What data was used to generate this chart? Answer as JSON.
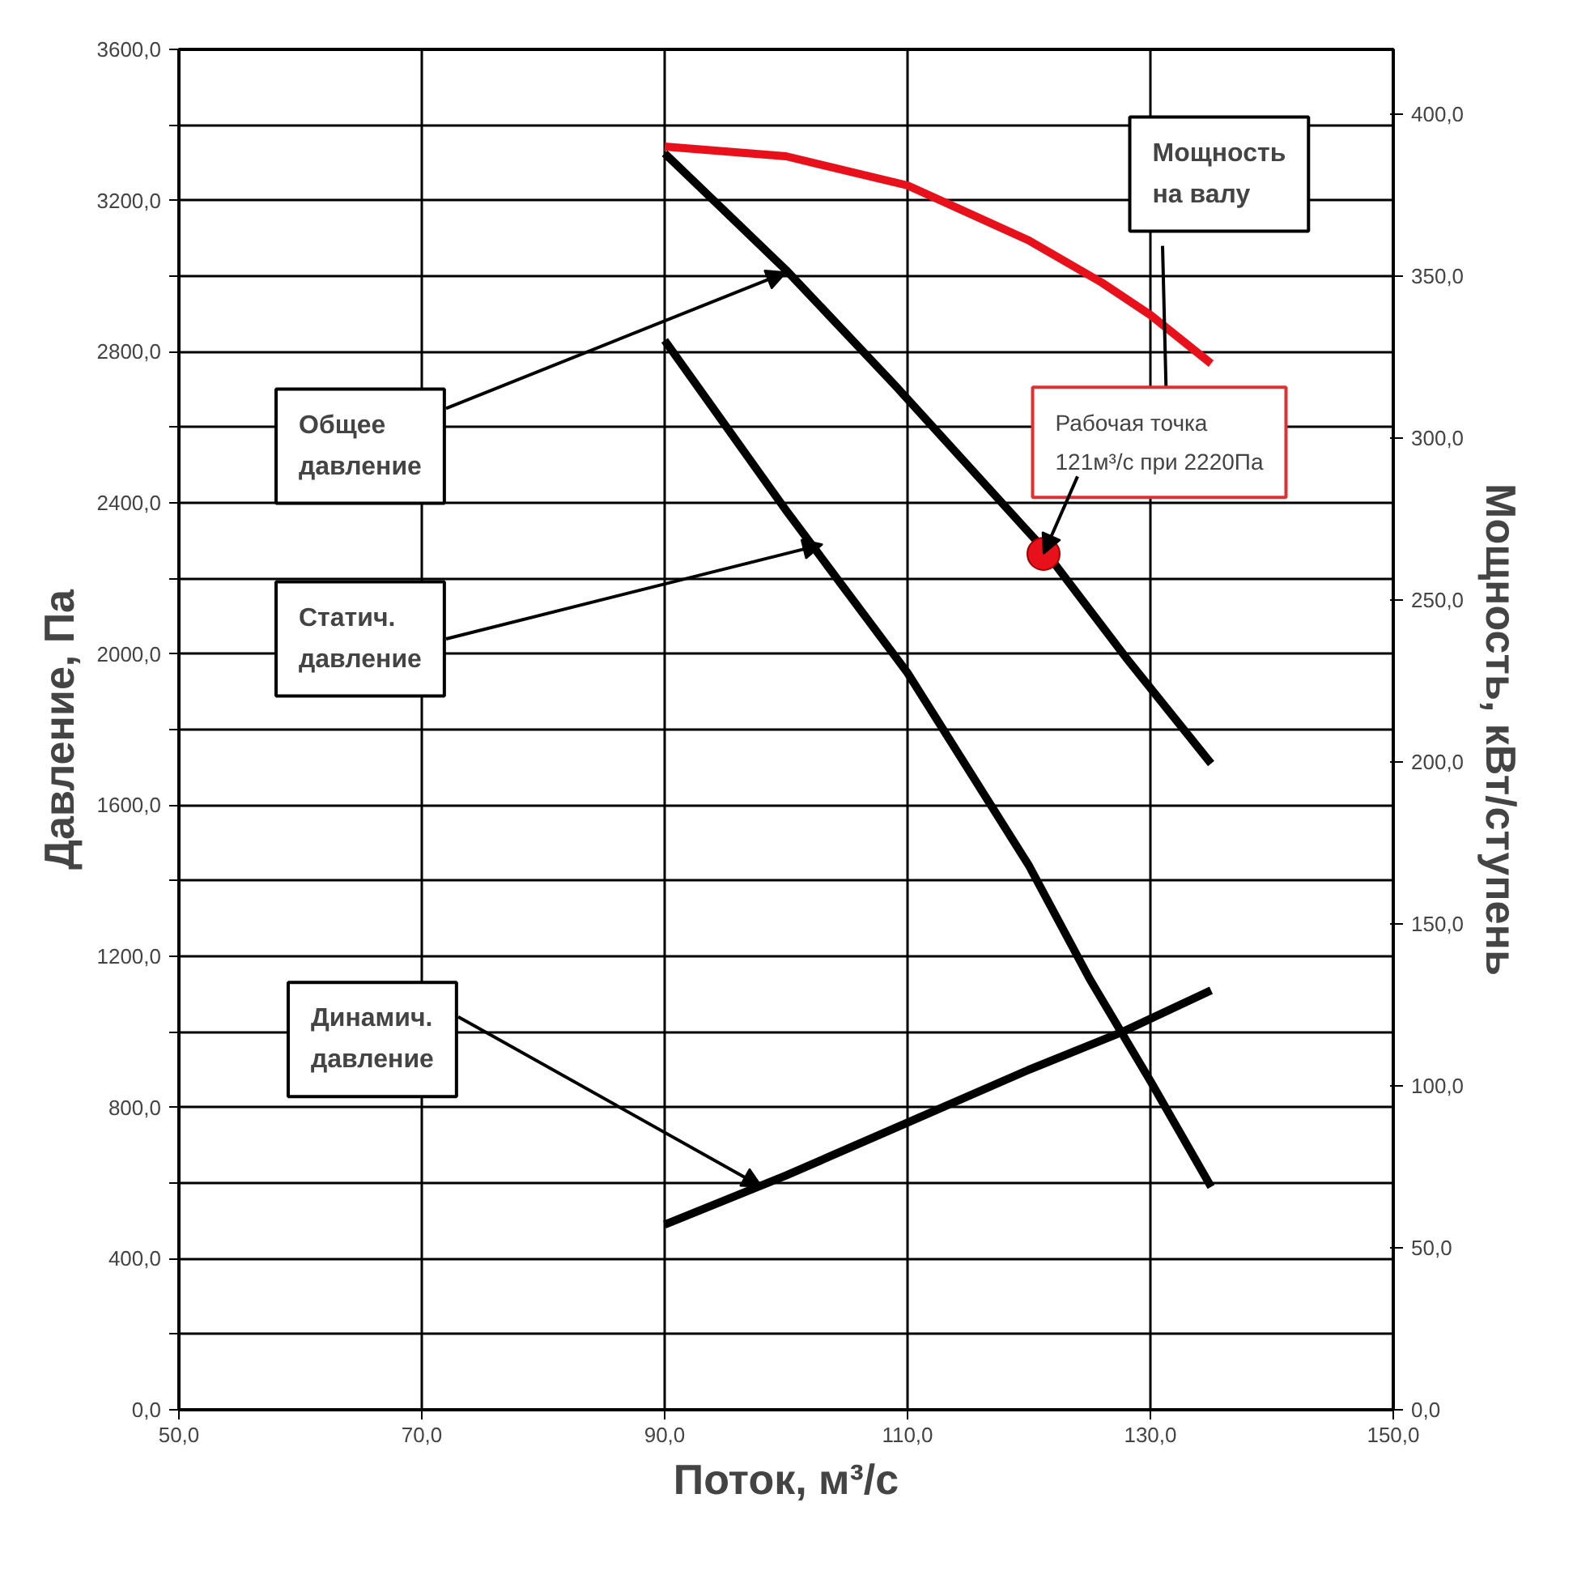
{
  "chart_data": {
    "type": "line",
    "xlabel": "Поток, м³/с",
    "ylabel": "Давление, Па",
    "y2label": "Мощность, кВт/ступень",
    "xlim": [
      50,
      150
    ],
    "xticks": [
      {
        "value": 50,
        "label": "50,0"
      },
      {
        "value": 70,
        "label": "70,0"
      },
      {
        "value": 90,
        "label": "90,0"
      },
      {
        "value": 110,
        "label": "110,0"
      },
      {
        "value": 130,
        "label": "130,0"
      },
      {
        "value": 150,
        "label": "150,0"
      }
    ],
    "ylim": [
      0,
      3600
    ],
    "yticks": [
      {
        "value": 0,
        "label": "0,0"
      },
      {
        "value": 200,
        "label": null
      },
      {
        "value": 400,
        "label": "400,0"
      },
      {
        "value": 600,
        "label": null
      },
      {
        "value": 800,
        "label": "800,0"
      },
      {
        "value": 1000,
        "label": null
      },
      {
        "value": 1200,
        "label": "1200,0"
      },
      {
        "value": 1400,
        "label": null
      },
      {
        "value": 1600,
        "label": "1600,0"
      },
      {
        "value": 1800,
        "label": null
      },
      {
        "value": 2000,
        "label": "2000,0"
      },
      {
        "value": 2200,
        "label": null
      },
      {
        "value": 2400,
        "label": "2400,0"
      },
      {
        "value": 2600,
        "label": null
      },
      {
        "value": 2800,
        "label": "2800,0"
      },
      {
        "value": 3000,
        "label": null
      },
      {
        "value": 3200,
        "label": "3200,0"
      },
      {
        "value": 3400,
        "label": null
      },
      {
        "value": 3600,
        "label": "3600,0"
      }
    ],
    "y2lim": [
      0,
      420
    ],
    "y2ticks": [
      {
        "value": 0,
        "label": "0,0"
      },
      {
        "value": 50,
        "label": "50,0"
      },
      {
        "value": 100,
        "label": "100,0"
      },
      {
        "value": 150,
        "label": "150,0"
      },
      {
        "value": 200,
        "label": "200,0"
      },
      {
        "value": 250,
        "label": "250,0"
      },
      {
        "value": 300,
        "label": "300,0"
      },
      {
        "value": 350,
        "label": "350,0"
      },
      {
        "value": 400,
        "label": "400,0"
      }
    ],
    "grid": true,
    "marker": "none",
    "line_style": "solid",
    "series": [
      {
        "color": "#000000",
        "x": [
          90,
          100,
          109,
          121,
          128,
          135
        ],
        "values": [
          3325,
          3016,
          2710,
          2286,
          1990,
          1710
        ]
      },
      {
        "color": "#000000",
        "x": [
          90,
          100,
          110,
          120,
          125,
          130,
          135
        ],
        "values": [
          2830,
          2380,
          1950,
          1440,
          1140,
          870,
          590
        ]
      },
      {
        "color": "#000000",
        "x": [
          90,
          100,
          110,
          120,
          127.7,
          135
        ],
        "values": [
          490,
          620,
          760,
          900,
          1000,
          1110
        ]
      },
      {
        "color": "#e8101a",
        "axis": "y2",
        "x": [
          90,
          100,
          110,
          120,
          126,
          130,
          135
        ],
        "values": [
          390,
          387,
          378,
          361,
          348,
          338,
          323
        ]
      },
      {
        "type": "scatter",
        "marker": "circle",
        "color": "#e8101a",
        "x": [
          121.2
        ],
        "values": [
          2265
        ]
      }
    ],
    "annotations": [
      {
        "text": "Общее\nдавление",
        "x": 100,
        "y": 3010
      },
      {
        "text": "Статич.\nдавление",
        "x": 103,
        "y": 2290
      },
      {
        "text": "Динамич.\nдавление",
        "x": 98,
        "y": 590
      },
      "Мощность\nна валу",
      {
        "text": "Рабочая точка\n121м³/с при 2220Па",
        "x": 121.2,
        "y": 2265
      }
    ]
  }
}
